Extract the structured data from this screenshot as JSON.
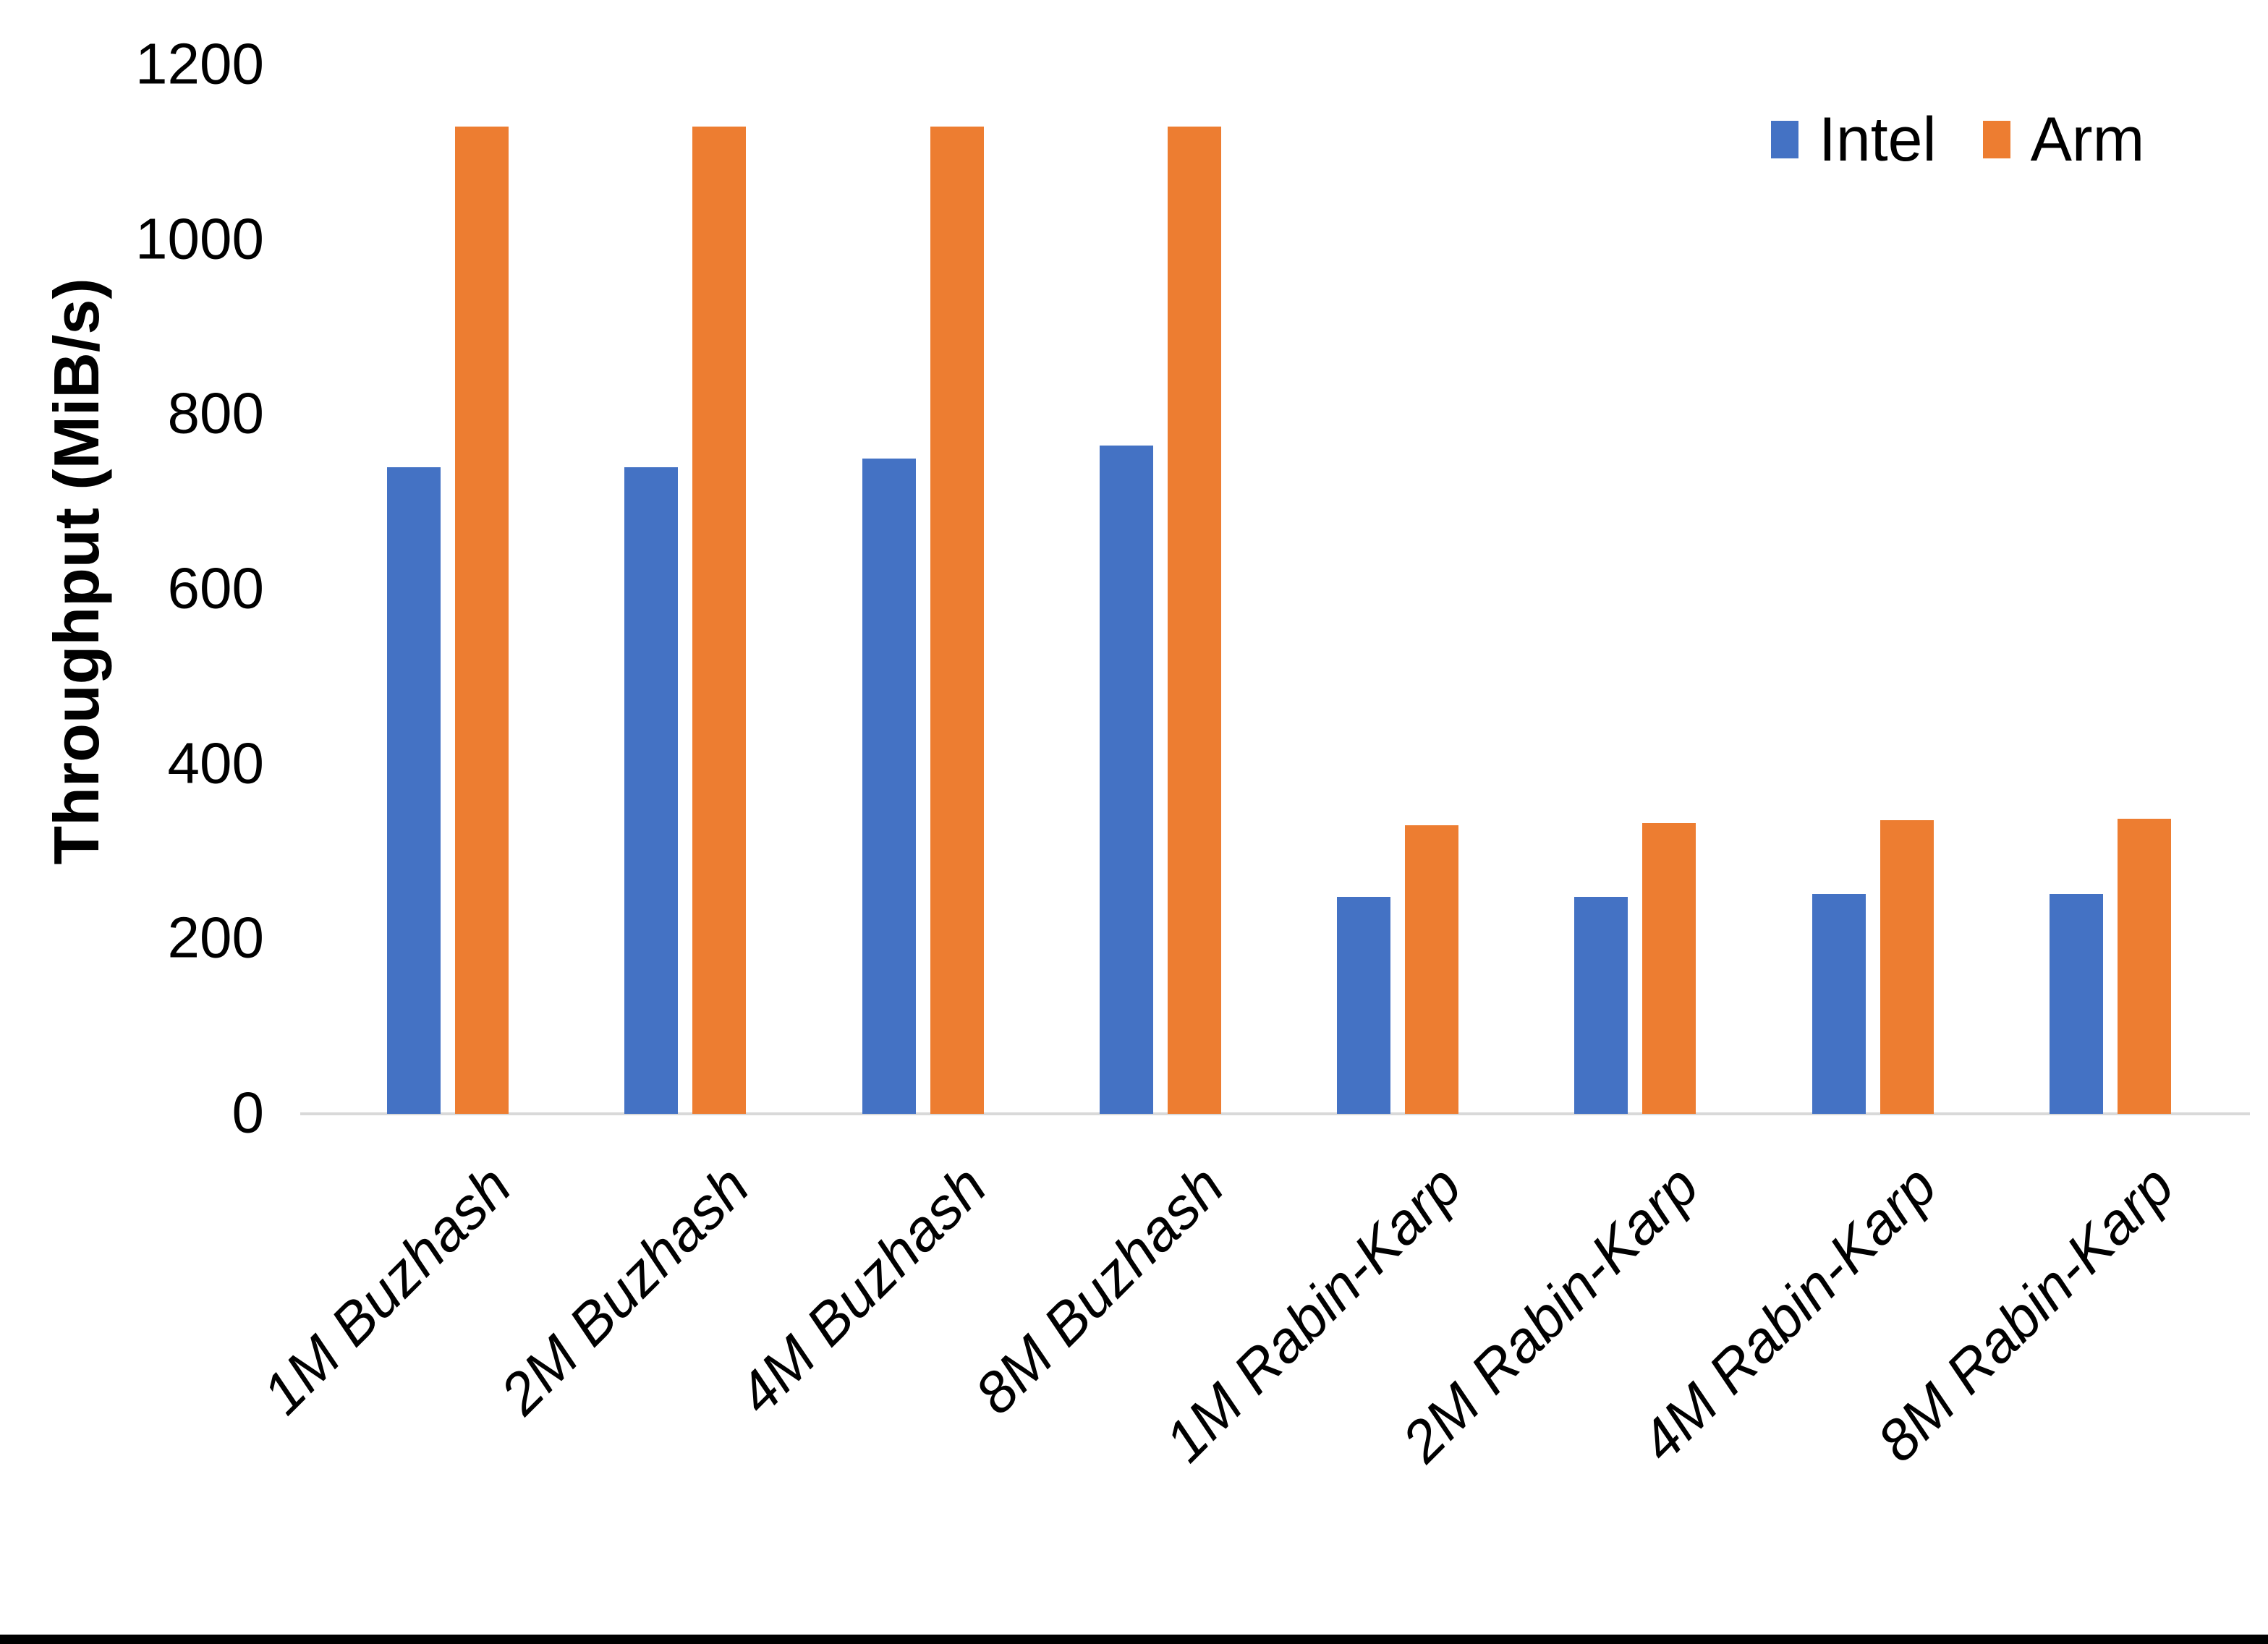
{
  "chart_data": {
    "type": "bar",
    "title": "",
    "xlabel": "",
    "ylabel": "Throughput (MiB/s)",
    "ylim": [
      0,
      1200
    ],
    "yticks": [
      0,
      200,
      400,
      600,
      800,
      1000,
      1200
    ],
    "grid": false,
    "legend_position": "top-right",
    "categories": [
      "1M Buzhash",
      "2M Buzhash",
      "4M Buzhash",
      "8M Buzhash",
      "1M Rabin-Karp",
      "2M Rabin-Karp",
      "4M Rabin-Karp",
      "8M Rabin-Karp"
    ],
    "series": [
      {
        "name": "Intel",
        "color": "#4472C4",
        "values": [
          740,
          740,
          750,
          765,
          248,
          248,
          252,
          252
        ]
      },
      {
        "name": "Arm",
        "color": "#ED7D31",
        "values": [
          1130,
          1130,
          1130,
          1130,
          330,
          333,
          336,
          338
        ]
      }
    ]
  },
  "colors": {
    "axis_line": "#D9D9D9",
    "text": "#000000",
    "background": "#FFFFFF",
    "bottom_bar": "#000000"
  }
}
